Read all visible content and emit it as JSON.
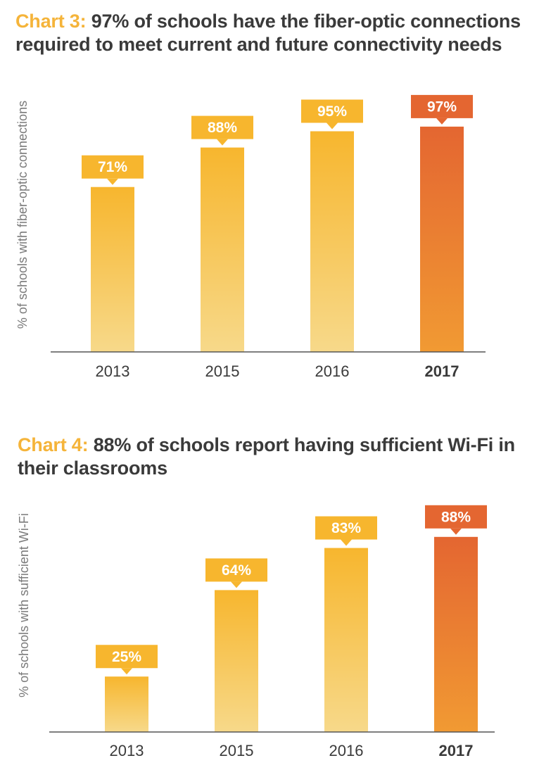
{
  "colors": {
    "accent_label": "#f5b43a",
    "bar_top": "#f7b62e",
    "bar_bottom": "#f7d98a",
    "highlight_top": "#e46631",
    "highlight_bottom": "#f19a33",
    "callout": "#f7b62e",
    "callout_highlight": "#e46631",
    "axis": "#555555"
  },
  "chart_data": [
    {
      "type": "bar",
      "title_label": "Chart 3:",
      "title": "97% of schools have the fiber-optic connections required to meet current and future connectivity needs",
      "ylabel": "% of schools with fiber-optic connections",
      "xlabel": "",
      "categories": [
        "2013",
        "2015",
        "2016",
        "2017"
      ],
      "values": [
        71,
        88,
        95,
        97
      ],
      "data_labels": [
        "71%",
        "88%",
        "95%",
        "97%"
      ],
      "highlight_category": "2017",
      "ylim": [
        0,
        100
      ],
      "grid": false,
      "legend": "none"
    },
    {
      "type": "bar",
      "title_label": "Chart 4:",
      "title": "88% of schools report having sufficient Wi-Fi in their classrooms",
      "ylabel": "% of schools with sufficient Wi-Fi",
      "xlabel": "",
      "categories": [
        "2013",
        "2015",
        "2016",
        "2017"
      ],
      "values": [
        25,
        64,
        83,
        88
      ],
      "data_labels": [
        "25%",
        "64%",
        "83%",
        "88%"
      ],
      "highlight_category": "2017",
      "ylim": [
        0,
        100
      ],
      "grid": false,
      "legend": "none"
    }
  ]
}
